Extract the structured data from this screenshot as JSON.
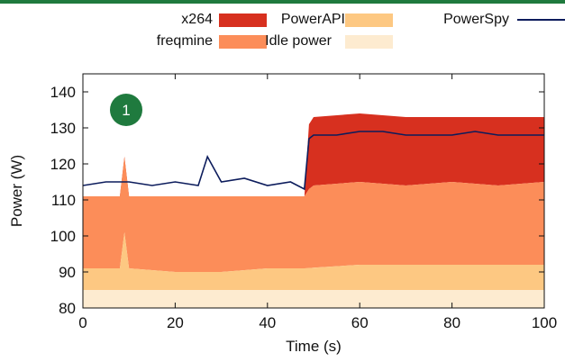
{
  "chart_data": {
    "type": "area",
    "xlabel": "Time (s)",
    "ylabel": "Power (W)",
    "xlim": [
      0,
      100
    ],
    "ylim": [
      80,
      145
    ],
    "x_ticks": [
      "0",
      "20",
      "40",
      "60",
      "80",
      "100"
    ],
    "y_ticks": [
      "80",
      "90",
      "100",
      "110",
      "120",
      "130",
      "140"
    ],
    "grid": false,
    "legend_position": "top",
    "annotation": "1",
    "stacked_series": [
      {
        "name": "Idle power",
        "color": "#fdebd0",
        "x": [
          0,
          100
        ],
        "values": [
          85,
          85
        ]
      },
      {
        "name": "PowerAPI",
        "color": "#fdc882",
        "x": [
          0,
          8,
          9,
          10,
          20,
          30,
          40,
          48,
          60,
          70,
          80,
          90,
          100
        ],
        "values": [
          91,
          91,
          101,
          91,
          90,
          90,
          91,
          91,
          92,
          92,
          92,
          92,
          92
        ]
      },
      {
        "name": "freqmine",
        "color": "#fc8d59",
        "x": [
          0,
          8,
          9,
          10,
          20,
          30,
          40,
          48,
          49,
          50,
          60,
          70,
          80,
          90,
          100
        ],
        "values": [
          111,
          111,
          122,
          111,
          111,
          111,
          111,
          111,
          113,
          114,
          115,
          114,
          115,
          114,
          115
        ]
      },
      {
        "name": "x264",
        "color": "#d7301f",
        "x": [
          0,
          48,
          49,
          50,
          60,
          70,
          80,
          90,
          100
        ],
        "values": [
          111,
          111,
          131,
          133,
          134,
          133,
          133,
          133,
          133
        ]
      }
    ],
    "line_series": [
      {
        "name": "PowerSpy",
        "color": "#0c1c5c",
        "x": [
          0,
          5,
          10,
          15,
          20,
          25,
          27,
          30,
          35,
          40,
          45,
          48,
          49,
          50,
          55,
          60,
          65,
          70,
          75,
          80,
          85,
          90,
          95,
          100
        ],
        "values": [
          114,
          115,
          115,
          114,
          115,
          114,
          122,
          115,
          116,
          114,
          115,
          113,
          127,
          128,
          128,
          129,
          129,
          128,
          128,
          128,
          129,
          128,
          128,
          128
        ]
      }
    ]
  }
}
